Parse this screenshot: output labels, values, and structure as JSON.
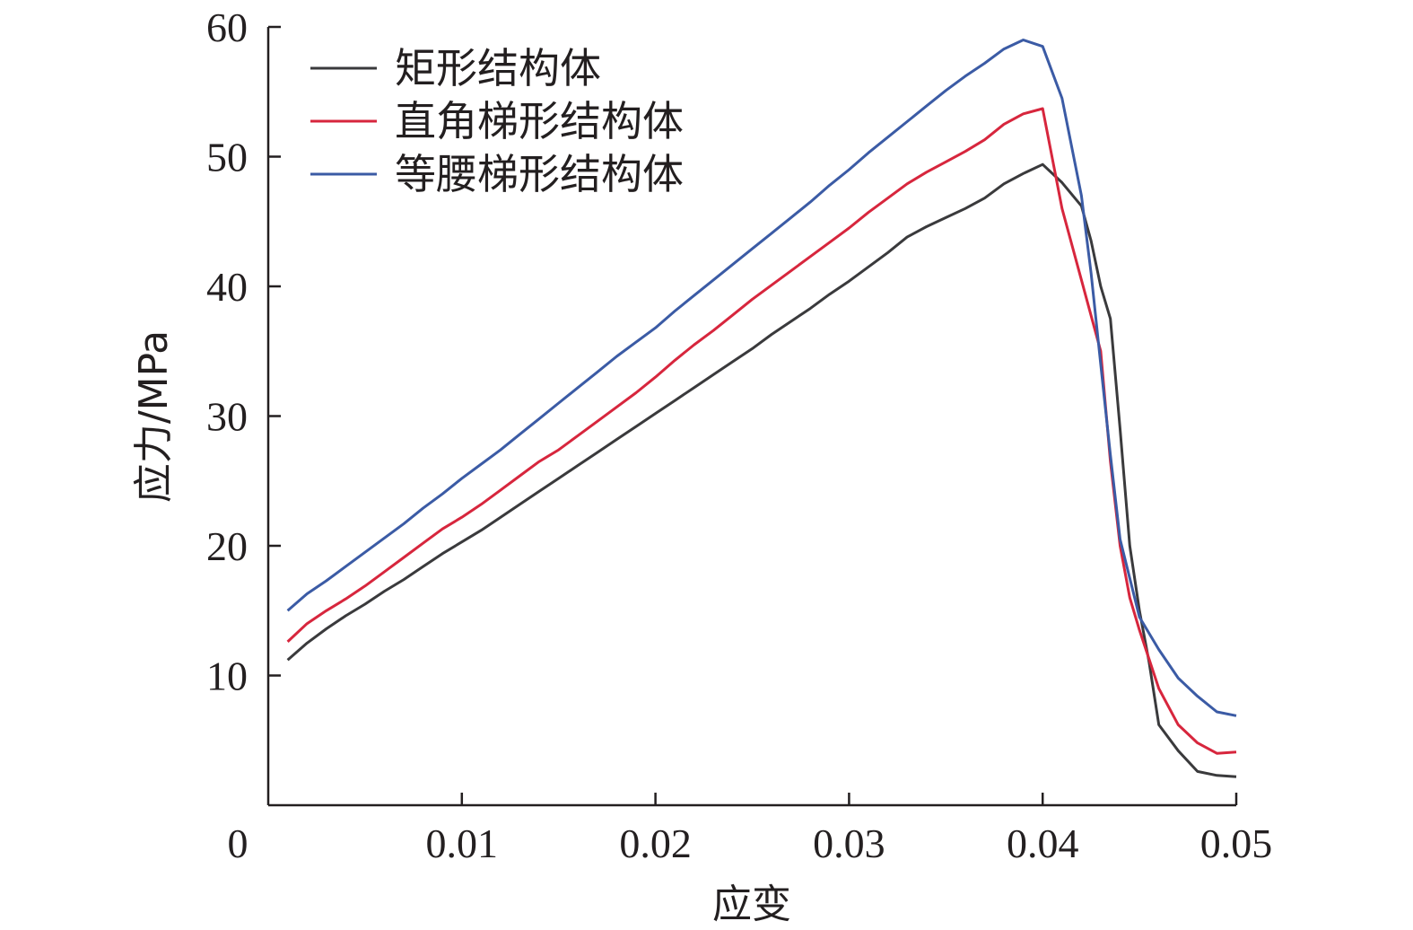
{
  "chart_data": {
    "type": "line",
    "xlabel": "应变",
    "ylabel": "应力/MPa",
    "xlim": [
      0,
      0.05
    ],
    "ylim": [
      0,
      60
    ],
    "x_ticks": [
      "0",
      "0.01",
      "0.02",
      "0.03",
      "0.04",
      "0.05"
    ],
    "y_ticks": [
      "10",
      "20",
      "30",
      "40",
      "50",
      "60"
    ],
    "grid": false,
    "legend_position": "top-left",
    "series": [
      {
        "name": "矩形结构体",
        "color": "#3a3a3c",
        "x": [
          0.001,
          0.002,
          0.003,
          0.004,
          0.005,
          0.006,
          0.007,
          0.008,
          0.009,
          0.01,
          0.011,
          0.012,
          0.013,
          0.014,
          0.015,
          0.016,
          0.017,
          0.018,
          0.019,
          0.02,
          0.021,
          0.022,
          0.023,
          0.024,
          0.025,
          0.026,
          0.027,
          0.028,
          0.029,
          0.03,
          0.031,
          0.032,
          0.033,
          0.034,
          0.035,
          0.036,
          0.037,
          0.038,
          0.039,
          0.04,
          0.041,
          0.042,
          0.0425,
          0.043,
          0.0435,
          0.044,
          0.0445,
          0.045,
          0.0455,
          0.046,
          0.047,
          0.048,
          0.049,
          0.05
        ],
        "y": [
          11.2,
          12.5,
          13.6,
          14.6,
          15.5,
          16.5,
          17.4,
          18.4,
          19.4,
          20.3,
          21.2,
          22.2,
          23.2,
          24.2,
          25.2,
          26.2,
          27.2,
          28.2,
          29.2,
          30.2,
          31.2,
          32.2,
          33.2,
          34.2,
          35.2,
          36.3,
          37.3,
          38.3,
          39.4,
          40.4,
          41.5,
          42.6,
          43.8,
          44.6,
          45.3,
          46.0,
          46.8,
          47.9,
          48.7,
          49.4,
          48.0,
          46.2,
          43.5,
          40.0,
          37.5,
          29.0,
          20.0,
          15.0,
          11.0,
          6.2,
          4.2,
          2.6,
          2.3,
          2.2
        ]
      },
      {
        "name": "直角梯形结构体",
        "color": "#d7263d",
        "x": [
          0.001,
          0.002,
          0.003,
          0.004,
          0.005,
          0.006,
          0.007,
          0.008,
          0.009,
          0.01,
          0.011,
          0.012,
          0.013,
          0.014,
          0.015,
          0.016,
          0.017,
          0.018,
          0.019,
          0.02,
          0.021,
          0.022,
          0.023,
          0.024,
          0.025,
          0.026,
          0.027,
          0.028,
          0.029,
          0.03,
          0.031,
          0.032,
          0.033,
          0.034,
          0.035,
          0.036,
          0.037,
          0.038,
          0.039,
          0.04,
          0.041,
          0.042,
          0.043,
          0.0435,
          0.044,
          0.0445,
          0.045,
          0.046,
          0.047,
          0.048,
          0.049,
          0.05
        ],
        "y": [
          12.6,
          14.0,
          15.0,
          15.9,
          16.9,
          18.0,
          19.1,
          20.2,
          21.3,
          22.2,
          23.2,
          24.3,
          25.4,
          26.5,
          27.4,
          28.5,
          29.6,
          30.7,
          31.8,
          33.0,
          34.3,
          35.5,
          36.6,
          37.8,
          39.0,
          40.1,
          41.2,
          42.3,
          43.4,
          44.5,
          45.7,
          46.8,
          47.9,
          48.8,
          49.6,
          50.4,
          51.3,
          52.5,
          53.3,
          53.7,
          46.0,
          40.5,
          35.0,
          26.5,
          20.0,
          16.0,
          13.5,
          9.0,
          6.2,
          4.8,
          4.0,
          4.1
        ]
      },
      {
        "name": "等腰梯形结构体",
        "color": "#3b5ba5",
        "x": [
          0.001,
          0.002,
          0.003,
          0.004,
          0.005,
          0.006,
          0.007,
          0.008,
          0.009,
          0.01,
          0.011,
          0.012,
          0.013,
          0.014,
          0.015,
          0.016,
          0.017,
          0.018,
          0.019,
          0.02,
          0.021,
          0.022,
          0.023,
          0.024,
          0.025,
          0.026,
          0.027,
          0.028,
          0.029,
          0.03,
          0.031,
          0.032,
          0.033,
          0.034,
          0.035,
          0.036,
          0.037,
          0.038,
          0.039,
          0.04,
          0.041,
          0.042,
          0.0425,
          0.043,
          0.0435,
          0.044,
          0.045,
          0.046,
          0.047,
          0.048,
          0.049,
          0.05
        ],
        "y": [
          15.0,
          16.3,
          17.3,
          18.4,
          19.5,
          20.6,
          21.7,
          22.9,
          24.0,
          25.2,
          26.3,
          27.4,
          28.6,
          29.8,
          31.0,
          32.2,
          33.4,
          34.6,
          35.7,
          36.8,
          38.1,
          39.3,
          40.5,
          41.7,
          42.9,
          44.1,
          45.3,
          46.5,
          47.8,
          49.0,
          50.3,
          51.5,
          52.7,
          53.9,
          55.1,
          56.2,
          57.2,
          58.3,
          59.0,
          58.5,
          54.5,
          47.0,
          41.0,
          34.0,
          27.0,
          20.5,
          14.5,
          12.0,
          9.8,
          8.4,
          7.2,
          6.9
        ]
      }
    ]
  }
}
